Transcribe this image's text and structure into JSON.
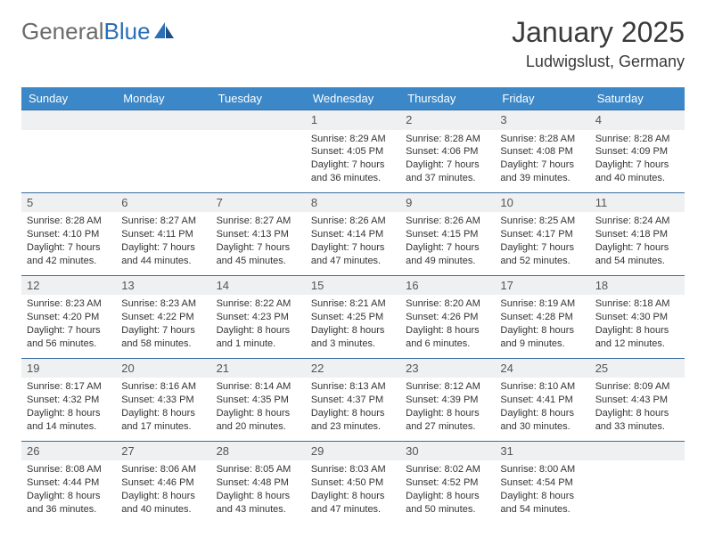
{
  "brand": {
    "part1": "General",
    "part2": "Blue"
  },
  "title": "January 2025",
  "location": "Ludwigslust, Germany",
  "colors": {
    "header_bg": "#3b87c8",
    "header_text": "#ffffff",
    "border": "#3b6fa0",
    "daynum_bg": "#eef0f2",
    "logo_gray": "#6b6b6b",
    "logo_blue": "#2b6fb5"
  },
  "typography": {
    "title_fontsize": 32,
    "subtitle_fontsize": 18,
    "dayhead_fontsize": 13,
    "body_fontsize": 11
  },
  "day_headers": [
    "Sunday",
    "Monday",
    "Tuesday",
    "Wednesday",
    "Thursday",
    "Friday",
    "Saturday"
  ],
  "weeks": [
    [
      null,
      null,
      null,
      {
        "n": "1",
        "sr": "8:29 AM",
        "ss": "4:05 PM",
        "dl": "7 hours and 36 minutes."
      },
      {
        "n": "2",
        "sr": "8:28 AM",
        "ss": "4:06 PM",
        "dl": "7 hours and 37 minutes."
      },
      {
        "n": "3",
        "sr": "8:28 AM",
        "ss": "4:08 PM",
        "dl": "7 hours and 39 minutes."
      },
      {
        "n": "4",
        "sr": "8:28 AM",
        "ss": "4:09 PM",
        "dl": "7 hours and 40 minutes."
      }
    ],
    [
      {
        "n": "5",
        "sr": "8:28 AM",
        "ss": "4:10 PM",
        "dl": "7 hours and 42 minutes."
      },
      {
        "n": "6",
        "sr": "8:27 AM",
        "ss": "4:11 PM",
        "dl": "7 hours and 44 minutes."
      },
      {
        "n": "7",
        "sr": "8:27 AM",
        "ss": "4:13 PM",
        "dl": "7 hours and 45 minutes."
      },
      {
        "n": "8",
        "sr": "8:26 AM",
        "ss": "4:14 PM",
        "dl": "7 hours and 47 minutes."
      },
      {
        "n": "9",
        "sr": "8:26 AM",
        "ss": "4:15 PM",
        "dl": "7 hours and 49 minutes."
      },
      {
        "n": "10",
        "sr": "8:25 AM",
        "ss": "4:17 PM",
        "dl": "7 hours and 52 minutes."
      },
      {
        "n": "11",
        "sr": "8:24 AM",
        "ss": "4:18 PM",
        "dl": "7 hours and 54 minutes."
      }
    ],
    [
      {
        "n": "12",
        "sr": "8:23 AM",
        "ss": "4:20 PM",
        "dl": "7 hours and 56 minutes."
      },
      {
        "n": "13",
        "sr": "8:23 AM",
        "ss": "4:22 PM",
        "dl": "7 hours and 58 minutes."
      },
      {
        "n": "14",
        "sr": "8:22 AM",
        "ss": "4:23 PM",
        "dl": "8 hours and 1 minute."
      },
      {
        "n": "15",
        "sr": "8:21 AM",
        "ss": "4:25 PM",
        "dl": "8 hours and 3 minutes."
      },
      {
        "n": "16",
        "sr": "8:20 AM",
        "ss": "4:26 PM",
        "dl": "8 hours and 6 minutes."
      },
      {
        "n": "17",
        "sr": "8:19 AM",
        "ss": "4:28 PM",
        "dl": "8 hours and 9 minutes."
      },
      {
        "n": "18",
        "sr": "8:18 AM",
        "ss": "4:30 PM",
        "dl": "8 hours and 12 minutes."
      }
    ],
    [
      {
        "n": "19",
        "sr": "8:17 AM",
        "ss": "4:32 PM",
        "dl": "8 hours and 14 minutes."
      },
      {
        "n": "20",
        "sr": "8:16 AM",
        "ss": "4:33 PM",
        "dl": "8 hours and 17 minutes."
      },
      {
        "n": "21",
        "sr": "8:14 AM",
        "ss": "4:35 PM",
        "dl": "8 hours and 20 minutes."
      },
      {
        "n": "22",
        "sr": "8:13 AM",
        "ss": "4:37 PM",
        "dl": "8 hours and 23 minutes."
      },
      {
        "n": "23",
        "sr": "8:12 AM",
        "ss": "4:39 PM",
        "dl": "8 hours and 27 minutes."
      },
      {
        "n": "24",
        "sr": "8:10 AM",
        "ss": "4:41 PM",
        "dl": "8 hours and 30 minutes."
      },
      {
        "n": "25",
        "sr": "8:09 AM",
        "ss": "4:43 PM",
        "dl": "8 hours and 33 minutes."
      }
    ],
    [
      {
        "n": "26",
        "sr": "8:08 AM",
        "ss": "4:44 PM",
        "dl": "8 hours and 36 minutes."
      },
      {
        "n": "27",
        "sr": "8:06 AM",
        "ss": "4:46 PM",
        "dl": "8 hours and 40 minutes."
      },
      {
        "n": "28",
        "sr": "8:05 AM",
        "ss": "4:48 PM",
        "dl": "8 hours and 43 minutes."
      },
      {
        "n": "29",
        "sr": "8:03 AM",
        "ss": "4:50 PM",
        "dl": "8 hours and 47 minutes."
      },
      {
        "n": "30",
        "sr": "8:02 AM",
        "ss": "4:52 PM",
        "dl": "8 hours and 50 minutes."
      },
      {
        "n": "31",
        "sr": "8:00 AM",
        "ss": "4:54 PM",
        "dl": "8 hours and 54 minutes."
      },
      null
    ]
  ],
  "labels": {
    "sunrise": "Sunrise: ",
    "sunset": "Sunset: ",
    "daylight": "Daylight: "
  }
}
